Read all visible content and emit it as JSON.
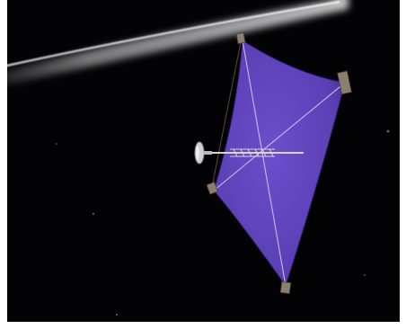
{
  "image": {
    "subject": "solar-sail-spacecraft",
    "colors": {
      "background": "#030305",
      "sail": "#5a3fb5",
      "sail_dark": "#3f2a8a",
      "planet_rim": "#e8e8ee",
      "boom": "#d9d4c8",
      "probe": "#cfcfd6"
    }
  }
}
